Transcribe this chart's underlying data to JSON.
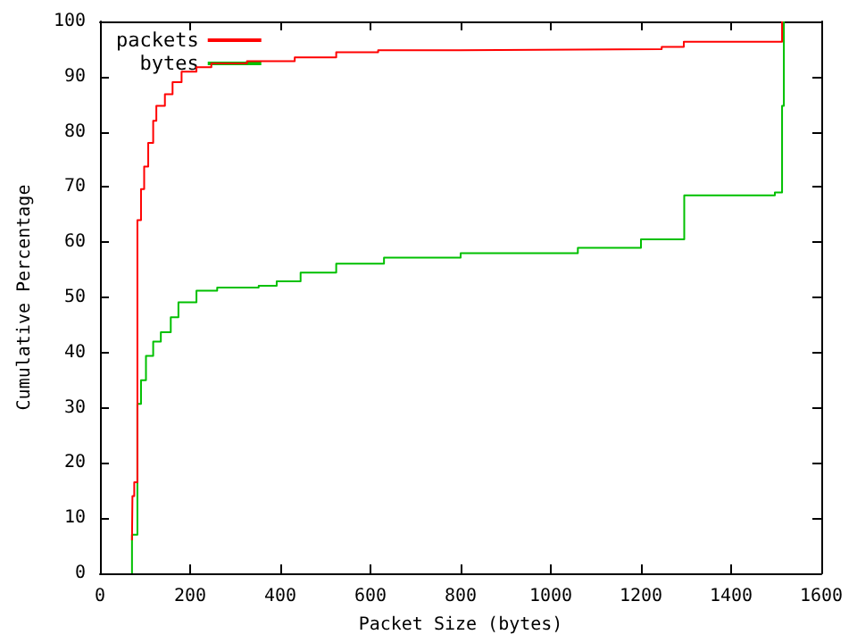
{
  "chart_data": {
    "type": "step",
    "xlabel": "Packet Size (bytes)",
    "ylabel": "Cumulative Percentage",
    "xlim": [
      0,
      1600
    ],
    "xticks": [
      0,
      200,
      400,
      600,
      800,
      1000,
      1200,
      1400,
      1600
    ],
    "ylim": [
      0,
      100
    ],
    "yticks": [
      0,
      10,
      20,
      30,
      40,
      50,
      60,
      70,
      80,
      90,
      100
    ],
    "grid": false,
    "legend": "top left",
    "marker": "none",
    "line_style": "solid",
    "series": [
      {
        "name": "packets",
        "color": "#ff0000",
        "x": [
          71,
          72,
          76,
          83,
          91,
          98,
          107,
          118,
          125,
          144,
          161,
          181,
          214,
          247,
          326,
          432,
          524,
          617,
          796,
          1246,
          1295,
          1513,
          1513
        ],
        "values": [
          6,
          14,
          16.5,
          64,
          69.6,
          73.7,
          78,
          82,
          84.7,
          86.8,
          89,
          90.9,
          91.7,
          92.4,
          92.8,
          93.5,
          94.4,
          94.8,
          95,
          95.4,
          96.3,
          96.3,
          100
        ]
      },
      {
        "name": "bytes",
        "color": "#00c000",
        "x": [
          71,
          71,
          83,
          91,
          102,
          118,
          135,
          157,
          174,
          214,
          260,
          352,
          392,
          445,
          524,
          630,
          800,
          1060,
          1200,
          1296,
          1497,
          1513,
          1517
        ],
        "values": [
          0,
          7,
          30.7,
          35,
          39.4,
          42,
          43.7,
          46.4,
          49.1,
          51.2,
          51.8,
          52.1,
          52.9,
          54.5,
          56.1,
          57.2,
          58,
          59,
          60.5,
          68.5,
          69,
          84.7,
          100
        ]
      }
    ]
  }
}
